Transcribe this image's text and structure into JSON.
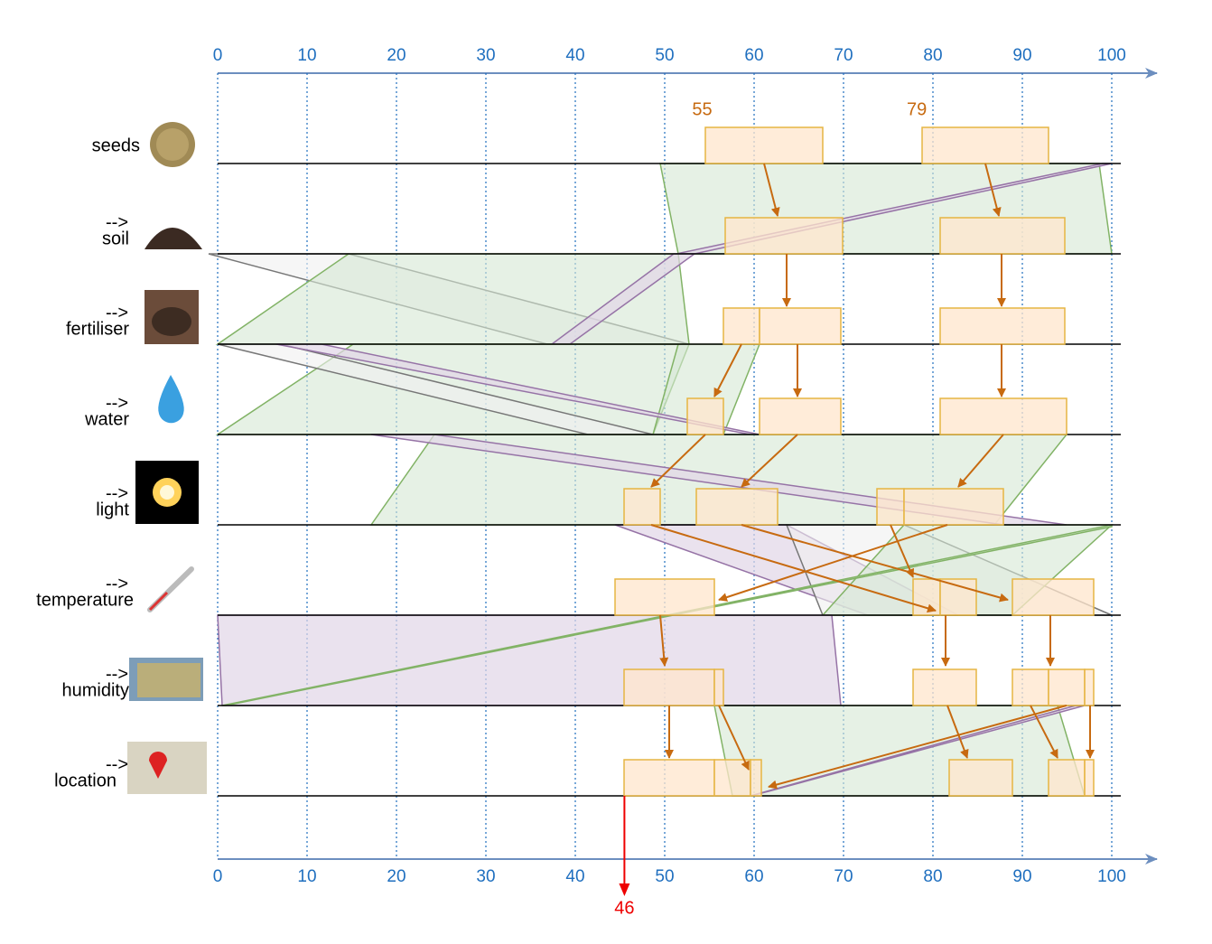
{
  "axis": {
    "top_ticks": [
      0,
      10,
      20,
      30,
      40,
      50,
      60,
      70,
      80,
      90,
      100
    ],
    "bottom_ticks": [
      0,
      10,
      20,
      30,
      40,
      50,
      60,
      70,
      80,
      90,
      100
    ],
    "range": [
      0,
      100
    ]
  },
  "rows": [
    {
      "name": "seeds"
    },
    {
      "prefix": "-->",
      "name": "soil"
    },
    {
      "prefix": "-->",
      "name": "fertiliser"
    },
    {
      "prefix": "-->",
      "name": "water"
    },
    {
      "prefix": "-->",
      "name": "light"
    },
    {
      "prefix": "-->",
      "name": "temperature"
    },
    {
      "prefix": "-->",
      "name": "humidity"
    },
    {
      "prefix": "-->",
      "name": "location"
    }
  ],
  "annotations": {
    "seed_starts": [
      55,
      79
    ],
    "answer": 46
  }
}
